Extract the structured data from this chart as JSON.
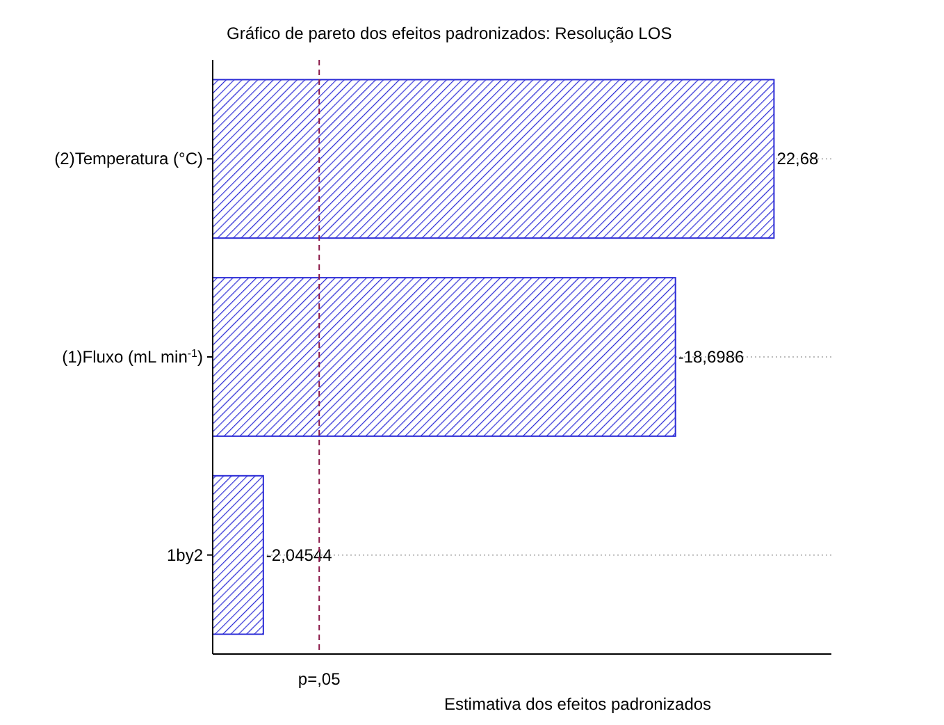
{
  "chart_data": {
    "type": "bar",
    "orientation": "horizontal",
    "title": "Gráfico de pareto dos efeitos padronizados: Resolução LOS",
    "xlabel": "Estimativa dos efeitos padronizados",
    "categories": [
      "(2)Temperatura (°C)",
      "(1)Fluxo (mL min$^{-1}$)",
      "1by2"
    ],
    "values": [
      22.68,
      18.6986,
      2.04544
    ],
    "value_labels": [
      "22,68",
      "-18,6986",
      "-2,04544"
    ],
    "color": "#2b2bd6",
    "xlim": [
      0,
      25
    ],
    "tick_labels": "y",
    "grid": "y",
    "ref_lines": [
      {
        "axis": "x",
        "value": 4.303,
        "label": "p=,05",
        "color": "#8b1a4a",
        "line_style": "dashed"
      }
    ]
  }
}
